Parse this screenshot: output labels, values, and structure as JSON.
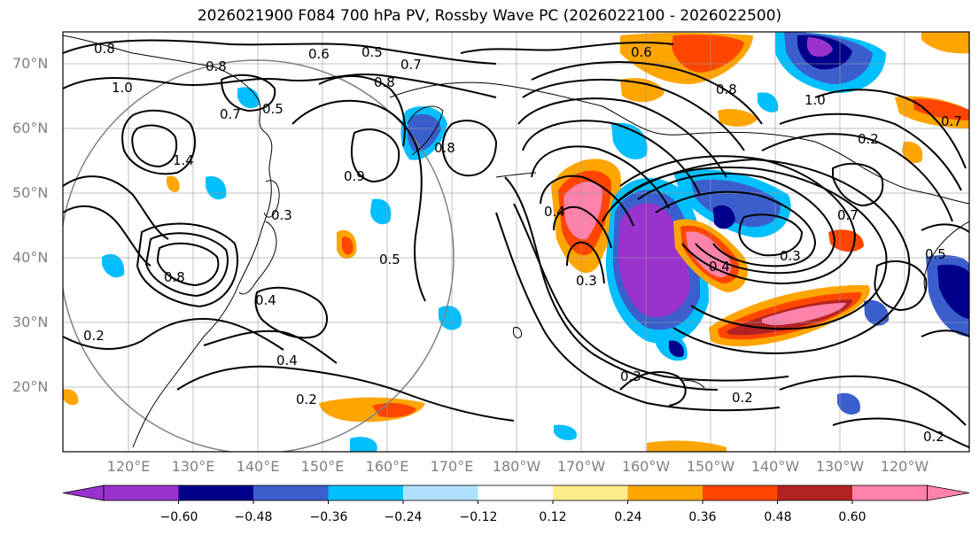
{
  "title": "2026021900 F084 700 hPa PV, Rossby Wave PC (2026022100 - 2026022500)",
  "lat_labels": [
    "70°N",
    "60°N",
    "50°N",
    "40°N",
    "30°N",
    "20°N"
  ],
  "lon_labels": [
    "120°E",
    "130°E",
    "140°E",
    "150°E",
    "160°E",
    "170°E",
    "180°W",
    "170°W",
    "160°W",
    "150°W",
    "140°W",
    "130°W",
    "120°W"
  ],
  "contour_labels": [
    "0.8",
    "0.6",
    "0.5",
    "0.7",
    "1.0",
    "0.8",
    "0.5",
    "0.8",
    "0.7",
    "1.4",
    "0.8",
    "0.9",
    "0.3",
    "0.8",
    "0.5",
    "0.4",
    "0.2",
    "0.4",
    "0.2",
    "0.6",
    "0.8",
    "0.4",
    "0.3",
    "0.3",
    "0.4",
    "0.3",
    "0.2",
    "0.2",
    "1.0",
    "0.7",
    "0.7",
    "0.5",
    "0.2"
  ],
  "colorbar": {
    "ticks": [
      "−0.60",
      "−0.48",
      "−0.36",
      "−0.24",
      "−0.12",
      "0.12",
      "0.24",
      "0.36",
      "0.48",
      "0.60"
    ],
    "colors": [
      "#9a32cd",
      "#00008b",
      "#3a5fcd",
      "#00bfff",
      "#b0e2ff",
      "#ffffff",
      "#ffec8b",
      "#ffa500",
      "#ff4500",
      "#b22222",
      "#ff82ab"
    ]
  }
}
